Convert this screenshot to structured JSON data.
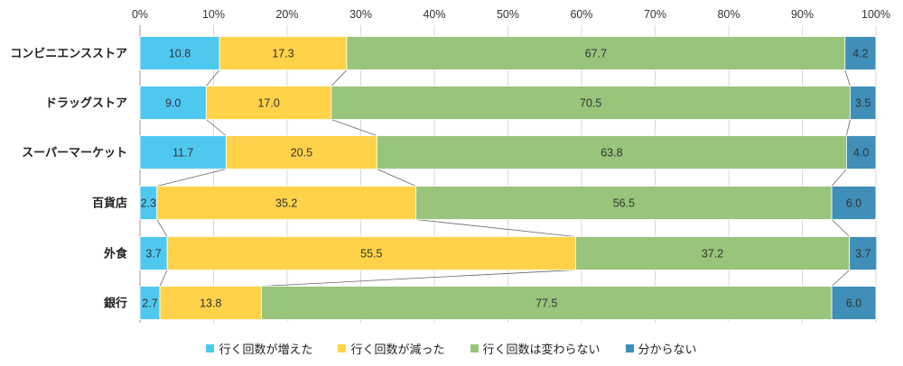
{
  "chart_data": {
    "type": "bar",
    "orientation": "horizontal",
    "stacked": true,
    "categories": [
      "コンビニエンスストア",
      "ドラッグストア",
      "スーパーマーケット",
      "百貨店",
      "外食",
      "銀行"
    ],
    "series": [
      {
        "name": "行く回数が増えた",
        "color": "#4fc8f0",
        "values": [
          10.8,
          9.0,
          11.7,
          2.3,
          3.7,
          2.7
        ]
      },
      {
        "name": "行く回数が減った",
        "color": "#ffd24a",
        "values": [
          17.3,
          17.0,
          20.5,
          35.2,
          55.5,
          13.8
        ]
      },
      {
        "name": "行く回数は変わらない",
        "color": "#98c47c",
        "values": [
          67.7,
          70.5,
          63.8,
          56.5,
          37.2,
          77.5
        ]
      },
      {
        "name": "分からない",
        "color": "#3f8fb8",
        "values": [
          4.2,
          3.5,
          4.0,
          6.0,
          3.7,
          6.0
        ]
      }
    ],
    "xlim": [
      0,
      100
    ],
    "x_ticks": [
      "0%",
      "10%",
      "20%",
      "30%",
      "40%",
      "50%",
      "60%",
      "70%",
      "80%",
      "90%",
      "100%"
    ],
    "legend_position": "bottom",
    "grid": true,
    "series_connector_lines": true
  }
}
